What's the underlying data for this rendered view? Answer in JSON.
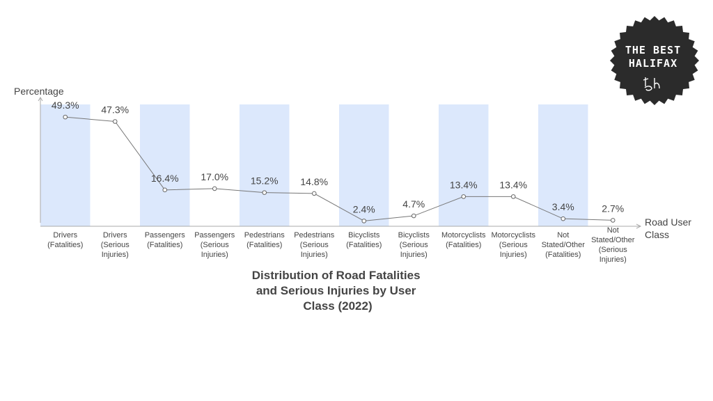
{
  "chart_data": {
    "type": "line",
    "title_lines": [
      "Distribution of Road Fatalities",
      "and Serious Injuries by User",
      "Class (2022)"
    ],
    "ylabel": "Percentage",
    "xlabel_lines": [
      "Road User",
      "Class"
    ],
    "ylim": [
      0,
      55
    ],
    "grid": false,
    "categories": [
      [
        "Drivers",
        "(Fatalities)"
      ],
      [
        "Drivers",
        "(Serious",
        "Injuries)"
      ],
      [
        "Passengers",
        "(Fatalities)"
      ],
      [
        "Passengers",
        "(Serious",
        "Injuries)"
      ],
      [
        "Pedestrians",
        "(Fatalities)"
      ],
      [
        "Pedestrians",
        "(Serious",
        "Injuries)"
      ],
      [
        "Bicyclists",
        "(Fatalities)"
      ],
      [
        "Bicyclists",
        "(Serious",
        "Injuries)"
      ],
      [
        "Motorcyclists",
        "(Fatalities)"
      ],
      [
        "Motorcyclists",
        "(Serious",
        "Injuries)"
      ],
      [
        "Not",
        "Stated/Other",
        "(Fatalities)"
      ],
      [
        "Not",
        "Stated/Other",
        "(Serious",
        "Injuries)"
      ]
    ],
    "values": [
      49.3,
      47.3,
      16.4,
      17.0,
      15.2,
      14.8,
      2.4,
      4.7,
      13.4,
      13.4,
      3.4,
      2.7
    ],
    "value_labels": [
      "49.3%",
      "47.3%",
      "16.4%",
      "17.0%",
      "15.2%",
      "14.8%",
      "2.4%",
      "4.7%",
      "13.4%",
      "13.4%",
      "3.4%",
      "2.7%"
    ],
    "shaded_bands": [
      0,
      2,
      4,
      6,
      8,
      10
    ]
  },
  "colors": {
    "band": "#dce8fc",
    "line": "#777777",
    "marker_fill": "#ffffff",
    "marker_stroke": "#666666",
    "axis": "#aaaaaa",
    "text": "#444444",
    "badge_bg": "#2b2b2b"
  },
  "badge": {
    "lines": [
      "THE BEST",
      "HALIFAX"
    ],
    "icon": "signature-logo-icon"
  }
}
